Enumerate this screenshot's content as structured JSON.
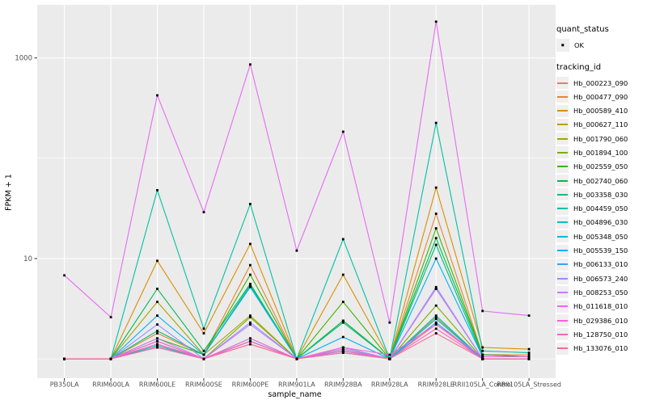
{
  "figure": {
    "y_axis": {
      "title": "FPKM + 1",
      "scale": "log10"
    },
    "x_axis": {
      "title": "sample_name"
    },
    "legend": {
      "quant_status_title": "quant_status",
      "quant_status_items": [
        "OK"
      ],
      "tracking_id_title": "tracking_id"
    },
    "colors": {
      "panel_bg": "#EBEBEB",
      "grid": "#FFFFFF",
      "axis_text": "#4D4D4D",
      "tick_mark": "#333333",
      "point": "#000000",
      "legend_key_bg": "#EFEFEF"
    }
  },
  "chart_data": {
    "type": "line",
    "title": "",
    "xlabel": "sample_name",
    "ylabel": "FPKM + 1",
    "y_scale": "log10",
    "ylim": [
      1,
      2500
    ],
    "y_major_ticks": [
      {
        "label": "10",
        "value": 10
      },
      {
        "label": "1000",
        "value": 1000
      }
    ],
    "y_minor_values": [
      1,
      100
    ],
    "grid": true,
    "legend_position": "right",
    "point_shape": "black-square",
    "categories": [
      "PB350LA",
      "RRIM600LA",
      "RRIM600LE",
      "RRIM600SE",
      "RRIM600PE",
      "RRIM901LA",
      "RRIM928BA",
      "RRIM928LA",
      "RRIM928LE",
      "RRII105LA_Control",
      "RRII105LA_Stressed"
    ],
    "series": [
      {
        "name": "Hb_000223_090",
        "color": "#F8766D",
        "values": [
          1.0,
          1.0,
          1.3,
          1.0,
          1.4,
          1.0,
          1.2,
          1.0,
          2.2,
          1.0,
          1.0
        ]
      },
      {
        "name": "Hb_000477_090",
        "color": "#EA8331",
        "values": [
          1.0,
          1.0,
          1.8,
          1.1,
          8.6,
          1.0,
          2.4,
          1.0,
          28,
          1.1,
          1.1
        ]
      },
      {
        "name": "Hb_000589_410",
        "color": "#D89000",
        "values": [
          1.0,
          1.0,
          9.5,
          1.8,
          14,
          1.0,
          6.9,
          1.0,
          51,
          1.3,
          1.25
        ]
      },
      {
        "name": "Hb_000627_110",
        "color": "#C09B00",
        "values": [
          1.0,
          1.0,
          1.4,
          1.0,
          1.5,
          1.0,
          1.2,
          1.0,
          2.6,
          1.0,
          1.0
        ]
      },
      {
        "name": "Hb_001790_060",
        "color": "#A3A500",
        "values": [
          1.0,
          1.0,
          3.7,
          1.1,
          2.7,
          1.0,
          1.3,
          1.0,
          5.0,
          1.0,
          1.0
        ]
      },
      {
        "name": "Hb_001894_100",
        "color": "#7CAE00",
        "values": [
          1.0,
          1.0,
          1.5,
          1.0,
          2.6,
          1.0,
          1.25,
          1.0,
          3.4,
          1.0,
          1.0
        ]
      },
      {
        "name": "Hb_002559_050",
        "color": "#39B600",
        "values": [
          1.0,
          1.0,
          1.6,
          1.1,
          6.9,
          1.0,
          3.7,
          1.0,
          20,
          1.1,
          1.05
        ]
      },
      {
        "name": "Hb_002740_060",
        "color": "#00BB4E",
        "values": [
          1.0,
          1.0,
          5.0,
          1.2,
          5.6,
          1.0,
          2.4,
          1.0,
          16,
          1.1,
          1.05
        ]
      },
      {
        "name": "Hb_003358_030",
        "color": "#00BF7D",
        "values": [
          1.0,
          1.0,
          1.9,
          1.1,
          5.4,
          1.0,
          2.3,
          1.0,
          13.7,
          1.05,
          1.05
        ]
      },
      {
        "name": "Hb_004459_050",
        "color": "#00C1A3",
        "values": [
          1.0,
          1.0,
          48,
          2.0,
          35,
          1.0,
          15.6,
          1.0,
          225,
          1.2,
          1.15
        ]
      },
      {
        "name": "Hb_004896_030",
        "color": "#00BFC4",
        "values": [
          1.0,
          1.0,
          1.35,
          1.0,
          1.6,
          1.0,
          1.2,
          1.0,
          2.7,
          1.0,
          1.0
        ]
      },
      {
        "name": "Hb_005348_050",
        "color": "#00BAE0",
        "values": [
          1.0,
          1.0,
          1.3,
          1.0,
          1.5,
          1.0,
          1.15,
          1.0,
          2.5,
          1.0,
          1.0
        ]
      },
      {
        "name": "Hb_005539_150",
        "color": "#00B0F6",
        "values": [
          1.0,
          1.0,
          2.7,
          1.1,
          5.2,
          1.0,
          1.65,
          1.0,
          10,
          1.05,
          1.05
        ]
      },
      {
        "name": "Hb_006133_010",
        "color": "#35A2FF",
        "values": [
          1.0,
          1.0,
          1.4,
          1.0,
          1.5,
          1.0,
          1.2,
          1.0,
          2.3,
          1.0,
          1.0
        ]
      },
      {
        "name": "Hb_006573_240",
        "color": "#9590FF",
        "values": [
          1.0,
          1.0,
          2.2,
          1.0,
          2.3,
          1.0,
          1.3,
          1.0,
          5.2,
          1.0,
          1.0
        ]
      },
      {
        "name": "Hb_008253_050",
        "color": "#C77CFF",
        "values": [
          1.0,
          1.0,
          1.6,
          1.0,
          2.2,
          1.0,
          1.25,
          1.0,
          5.0,
          1.0,
          1.0
        ]
      },
      {
        "name": "Hb_011618_010",
        "color": "#E76BF3",
        "values": [
          6.8,
          2.6,
          424,
          29,
          860,
          12,
          184,
          2.3,
          2300,
          3.0,
          2.7
        ]
      },
      {
        "name": "Hb_029386_010",
        "color": "#FA62DB",
        "values": [
          1.0,
          1.0,
          1.5,
          1.0,
          1.6,
          1.0,
          1.3,
          1.1,
          2.2,
          1.05,
          1.05
        ]
      },
      {
        "name": "Hb_128750_010",
        "color": "#FF62BC",
        "values": [
          1.0,
          1.0,
          1.4,
          1.0,
          1.5,
          1.0,
          1.2,
          1.0,
          2.0,
          1.0,
          1.0
        ]
      },
      {
        "name": "Hb_133076_010",
        "color": "#FF6A98",
        "values": [
          1.0,
          1.0,
          1.3,
          1.0,
          1.4,
          1.0,
          1.15,
          1.0,
          1.8,
          1.0,
          1.0
        ]
      }
    ]
  }
}
